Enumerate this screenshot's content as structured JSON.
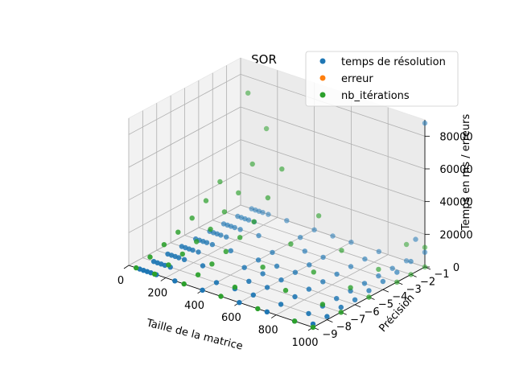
{
  "chart_data": {
    "type": "scatter3d",
    "title": "SOR",
    "xlabel": "Taille de la matrice",
    "ylabel": "Précision",
    "zlabel": "Temps en ms / erreurs",
    "xlim": [
      0,
      1000
    ],
    "ylim": [
      -9,
      -1
    ],
    "zlim": [
      0,
      90000
    ],
    "xticks": [
      "0",
      "200",
      "400",
      "600",
      "800",
      "1000"
    ],
    "yticks": [
      "−9",
      "−8",
      "−7",
      "−6",
      "−5",
      "−4",
      "−3",
      "−2",
      "−1"
    ],
    "zticks": [
      "0",
      "20000",
      "40000",
      "60000",
      "80000"
    ],
    "grid": true,
    "legend_position": "top-right",
    "series": [
      {
        "name": "temps de résolution",
        "color": "#1f77b4",
        "points": [
          [
            60,
            -9,
            0
          ],
          [
            80,
            -9,
            0
          ],
          [
            100,
            -9,
            0
          ],
          [
            120,
            -9,
            0
          ],
          [
            150,
            -9,
            0
          ],
          [
            60,
            -8,
            0
          ],
          [
            80,
            -8,
            0
          ],
          [
            100,
            -8,
            0
          ],
          [
            120,
            -8,
            0
          ],
          [
            150,
            -8,
            0
          ],
          [
            60,
            -7,
            0
          ],
          [
            80,
            -7,
            0
          ],
          [
            100,
            -7,
            0
          ],
          [
            120,
            -7,
            0
          ],
          [
            150,
            -7,
            0
          ],
          [
            60,
            -6,
            0
          ],
          [
            80,
            -6,
            0
          ],
          [
            100,
            -6,
            0
          ],
          [
            120,
            -6,
            0
          ],
          [
            150,
            -6,
            0
          ],
          [
            60,
            -5,
            0
          ],
          [
            80,
            -5,
            0
          ],
          [
            100,
            -5,
            0
          ],
          [
            120,
            -5,
            0
          ],
          [
            150,
            -5,
            0
          ],
          [
            60,
            -4,
            0
          ],
          [
            80,
            -4,
            0
          ],
          [
            100,
            -4,
            0
          ],
          [
            120,
            -4,
            0
          ],
          [
            150,
            -4,
            0
          ],
          [
            60,
            -3,
            0
          ],
          [
            80,
            -3,
            0
          ],
          [
            100,
            -3,
            0
          ],
          [
            120,
            -3,
            0
          ],
          [
            150,
            -3,
            0
          ],
          [
            60,
            -2,
            0
          ],
          [
            80,
            -2,
            0
          ],
          [
            100,
            -2,
            0
          ],
          [
            120,
            -2,
            0
          ],
          [
            150,
            -2,
            0
          ],
          [
            60,
            -1,
            0
          ],
          [
            80,
            -1,
            0
          ],
          [
            100,
            -1,
            0
          ],
          [
            120,
            -1,
            0
          ],
          [
            150,
            -1,
            0
          ],
          [
            250,
            -9,
            0
          ],
          [
            250,
            -7,
            0
          ],
          [
            250,
            -5,
            0
          ],
          [
            250,
            -3,
            0
          ],
          [
            250,
            -1,
            0
          ],
          [
            400,
            -9,
            0
          ],
          [
            400,
            -8,
            0
          ],
          [
            400,
            -6,
            0
          ],
          [
            400,
            -5,
            0
          ],
          [
            400,
            -4,
            0
          ],
          [
            400,
            -2,
            0
          ],
          [
            400,
            -1,
            0
          ],
          [
            500,
            -8,
            0
          ],
          [
            500,
            -7,
            0
          ],
          [
            500,
            -6,
            0
          ],
          [
            500,
            -5,
            0
          ],
          [
            500,
            -3,
            0
          ],
          [
            500,
            -1,
            0
          ],
          [
            600,
            -9,
            0
          ],
          [
            600,
            -8,
            0
          ],
          [
            600,
            -7,
            0
          ],
          [
            600,
            -6,
            0
          ],
          [
            600,
            -5,
            0
          ],
          [
            600,
            -4,
            0
          ],
          [
            600,
            -3,
            0
          ],
          [
            600,
            -1,
            0
          ],
          [
            750,
            -9,
            0
          ],
          [
            750,
            -8,
            0
          ],
          [
            750,
            -7,
            0
          ],
          [
            750,
            -6,
            0
          ],
          [
            750,
            -5,
            0
          ],
          [
            750,
            -4,
            0
          ],
          [
            750,
            -3,
            0
          ],
          [
            750,
            -2,
            0
          ],
          [
            750,
            -1,
            0
          ],
          [
            900,
            -9,
            0
          ],
          [
            900,
            -8,
            0
          ],
          [
            900,
            -7,
            0
          ],
          [
            900,
            -6,
            0
          ],
          [
            900,
            -5,
            0
          ],
          [
            900,
            -4,
            0
          ],
          [
            900,
            -3,
            0
          ],
          [
            900,
            -2,
            0
          ],
          [
            900,
            -1,
            0
          ],
          [
            1000,
            -9,
            2000
          ],
          [
            1000,
            -8,
            2000
          ],
          [
            1000,
            -7,
            3000
          ],
          [
            1000,
            -6,
            3000
          ],
          [
            1000,
            -5,
            4000
          ],
          [
            1000,
            -4,
            5000
          ],
          [
            1000,
            -3,
            6000
          ],
          [
            1000,
            -2,
            8000
          ],
          [
            1000,
            -1,
            9000
          ],
          [
            950,
            -1,
            15000
          ],
          [
            1000,
            -1,
            88000
          ]
        ]
      },
      {
        "name": "erreur",
        "color": "#ff7f0e",
        "points": []
      },
      {
        "name": "nb_itérations",
        "color": "#2ca02c",
        "points": [
          [
            40,
            -9,
            0
          ],
          [
            40,
            -8,
            2000
          ],
          [
            40,
            -7,
            5000
          ],
          [
            40,
            -6,
            8000
          ],
          [
            40,
            -5,
            12000
          ],
          [
            40,
            -4,
            18000
          ],
          [
            40,
            -3,
            25000
          ],
          [
            40,
            -1,
            70000
          ],
          [
            140,
            -9,
            0
          ],
          [
            140,
            -8,
            1000
          ],
          [
            140,
            -7,
            3000
          ],
          [
            140,
            -6,
            6000
          ],
          [
            140,
            -5,
            9000
          ],
          [
            140,
            -4,
            15000
          ],
          [
            140,
            -3,
            22000
          ],
          [
            140,
            -2,
            35000
          ],
          [
            140,
            -1,
            52000
          ],
          [
            300,
            -9,
            0
          ],
          [
            300,
            -8,
            1000
          ],
          [
            300,
            -7,
            3000
          ],
          [
            300,
            -6,
            6000
          ],
          [
            300,
            -5,
            10000
          ],
          [
            300,
            -4,
            15000
          ],
          [
            300,
            -3,
            25000
          ],
          [
            300,
            -2,
            38000
          ],
          [
            500,
            -9,
            0
          ],
          [
            500,
            -8,
            1000
          ],
          [
            500,
            -6,
            4000
          ],
          [
            500,
            -4,
            9000
          ],
          [
            500,
            -2,
            17000
          ],
          [
            700,
            -9,
            0
          ],
          [
            700,
            -7,
            2000
          ],
          [
            700,
            -5,
            4000
          ],
          [
            700,
            -3,
            8000
          ],
          [
            900,
            -9,
            0
          ],
          [
            900,
            -7,
            1000
          ],
          [
            900,
            -5,
            2000
          ],
          [
            900,
            -3,
            4000
          ],
          [
            900,
            -1,
            10000
          ],
          [
            1000,
            -9,
            0
          ],
          [
            1000,
            -7,
            0
          ],
          [
            1000,
            -5,
            0
          ],
          [
            1000,
            -3,
            0
          ],
          [
            1000,
            -2,
            0
          ],
          [
            1000,
            -1,
            0
          ],
          [
            1000,
            -1,
            12000
          ]
        ]
      }
    ]
  }
}
